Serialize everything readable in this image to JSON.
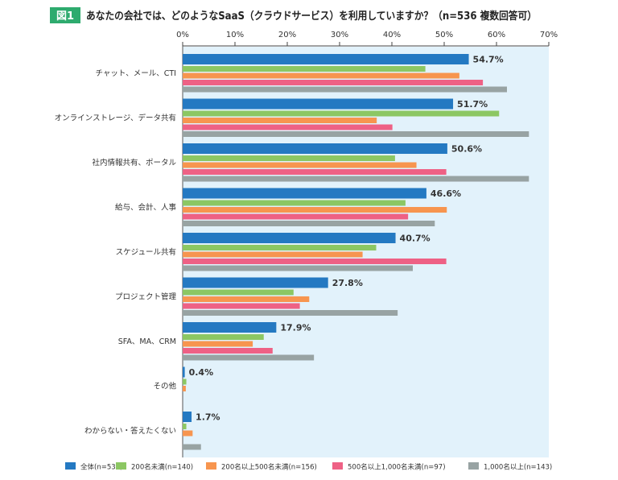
{
  "figure_label": "図1",
  "chart_data": {
    "type": "bar",
    "orientation": "horizontal",
    "title": "あなたの会社では、どのようなSaaS（クラウドサービス）を利用していますか？（n=536 複数回答可）",
    "xlabel": "",
    "ylabel": "",
    "xlim": [
      0,
      70
    ],
    "x_ticks": [
      "0%",
      "10%",
      "20%",
      "30%",
      "40%",
      "50%",
      "60%",
      "70%"
    ],
    "grid": false,
    "legend_position": "bottom",
    "categories": [
      "チャット、メール、CTI",
      "オンラインストレージ、データ共有",
      "社内情報共有、ポータル",
      "給与、会計、人事",
      "スケジュール共有",
      "プロジェクト管理",
      "SFA、MA、CRM",
      "その他",
      "わからない・答えたくない"
    ],
    "series": [
      {
        "name": "全体(n=536)",
        "color": "#2479c2",
        "values": [
          54.7,
          51.7,
          50.6,
          46.6,
          40.7,
          27.8,
          17.9,
          0.4,
          1.7
        ],
        "labels": [
          "54.7%",
          "51.7%",
          "50.6%",
          "46.6%",
          "40.7%",
          "27.8%",
          "17.9%",
          "0.4%",
          "1.7%"
        ]
      },
      {
        "name": "200名未満(n=140)",
        "color": "#8cc763",
        "values": [
          46.4,
          60.5,
          40.6,
          42.6,
          37.0,
          21.2,
          15.5,
          0.7,
          0.7
        ]
      },
      {
        "name": "200名以上500名未満(n=156)",
        "color": "#f7954f",
        "values": [
          52.9,
          37.1,
          44.7,
          50.5,
          34.4,
          24.2,
          13.4,
          0.6,
          1.9
        ]
      },
      {
        "name": "500名以上1,000名未満(n=97)",
        "color": "#ee6185",
        "values": [
          57.4,
          40.1,
          50.4,
          43.1,
          50.4,
          22.4,
          17.2,
          0,
          0
        ]
      },
      {
        "name": "1,000名以上(n=143)",
        "color": "#98a3a3",
        "values": [
          62.0,
          66.2,
          66.2,
          48.2,
          44.0,
          41.1,
          25.1,
          0,
          3.5
        ]
      }
    ],
    "colors": {
      "plot_background": "#e2f2fb",
      "figure_label_bg": "#2eab6e"
    }
  }
}
